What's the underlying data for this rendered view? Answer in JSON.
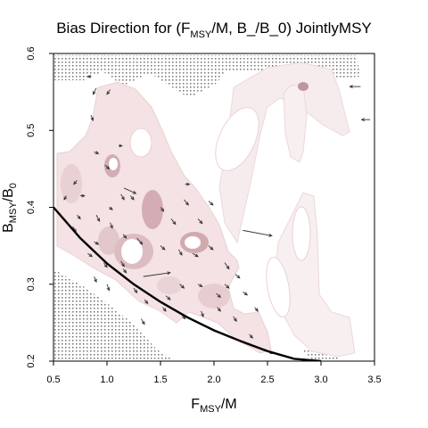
{
  "chart_data": {
    "type": "heatmap",
    "title": {
      "prefix": "Bias Direction for (F",
      "sub": "MSY",
      "suffix": "/M, B_/B_0) JointlyMSY"
    },
    "xlabel": {
      "main": "F",
      "sub": "MSY",
      "tail": "/M"
    },
    "ylabel": {
      "main": "B",
      "sub": "MSY",
      "tail": "/B",
      "sub2": "0"
    },
    "xlim": [
      0.5,
      3.5
    ],
    "ylim": [
      0.2,
      0.6
    ],
    "x_ticks": [
      "0.5",
      "1.0",
      "1.5",
      "2.0",
      "2.5",
      "3.0",
      "3.5"
    ],
    "y_ticks": [
      "0.2",
      "0.3",
      "0.4",
      "0.5",
      "0.6"
    ],
    "curve": [
      [
        0.5,
        0.4
      ],
      [
        0.75,
        0.36
      ],
      [
        1.0,
        0.327
      ],
      [
        1.25,
        0.3
      ],
      [
        1.5,
        0.277
      ],
      [
        1.75,
        0.257
      ],
      [
        2.0,
        0.24
      ],
      [
        2.25,
        0.226
      ],
      [
        2.5,
        0.213
      ],
      [
        2.75,
        0.203
      ],
      [
        3.0,
        0.2
      ]
    ],
    "arrows": [
      [
        0.85,
        0.57,
        0.82,
        0.57
      ],
      [
        0.9,
        0.555,
        0.87,
        0.547
      ],
      [
        1.03,
        0.553,
        1.0,
        0.547
      ],
      [
        0.85,
        0.52,
        0.87,
        0.513
      ],
      [
        0.88,
        0.472,
        0.92,
        0.47
      ],
      [
        0.98,
        0.455,
        1.02,
        0.45
      ],
      [
        1.11,
        0.48,
        1.14,
        0.48
      ],
      [
        1.16,
        0.425,
        1.27,
        0.418
      ],
      [
        0.72,
        0.435,
        0.69,
        0.43
      ],
      [
        0.75,
        0.415,
        0.79,
        0.415
      ],
      [
        0.9,
        0.39,
        0.93,
        0.382
      ],
      [
        1.02,
        0.4,
        1.05,
        0.397
      ],
      [
        1.13,
        0.417,
        1.16,
        0.41
      ],
      [
        1.22,
        0.415,
        1.25,
        0.41
      ],
      [
        0.62,
        0.415,
        0.6,
        0.41
      ],
      [
        0.72,
        0.39,
        0.75,
        0.385
      ],
      [
        0.88,
        0.355,
        0.92,
        0.352
      ],
      [
        1.03,
        0.38,
        1.05,
        0.373
      ],
      [
        1.15,
        0.365,
        1.18,
        0.36
      ],
      [
        1.28,
        0.36,
        1.33,
        0.352
      ],
      [
        1.5,
        0.4,
        1.53,
        0.395
      ],
      [
        1.6,
        0.385,
        1.64,
        0.378
      ],
      [
        1.72,
        0.41,
        1.76,
        0.403
      ],
      [
        1.85,
        0.385,
        1.89,
        0.379
      ],
      [
        1.95,
        0.408,
        1.99,
        0.403
      ],
      [
        1.73,
        0.43,
        1.77,
        0.43
      ],
      [
        0.68,
        0.375,
        0.71,
        0.368
      ],
      [
        0.82,
        0.34,
        0.86,
        0.336
      ],
      [
        0.97,
        0.328,
        1.0,
        0.322
      ],
      [
        1.13,
        0.33,
        1.16,
        0.323
      ],
      [
        1.34,
        0.31,
        1.59,
        0.315
      ],
      [
        1.5,
        0.35,
        1.54,
        0.345
      ],
      [
        1.67,
        0.345,
        1.7,
        0.338
      ],
      [
        1.8,
        0.34,
        1.85,
        0.336
      ],
      [
        1.95,
        0.35,
        1.99,
        0.345
      ],
      [
        2.1,
        0.328,
        2.14,
        0.32
      ],
      [
        2.27,
        0.37,
        2.54,
        0.363
      ],
      [
        2.2,
        0.313,
        2.24,
        0.308
      ],
      [
        2.1,
        0.3,
        2.14,
        0.295
      ],
      [
        2.27,
        0.29,
        2.31,
        0.286
      ],
      [
        2.02,
        0.288,
        2.06,
        0.283
      ],
      [
        1.85,
        0.3,
        1.89,
        0.297
      ],
      [
        1.68,
        0.3,
        1.72,
        0.295
      ],
      [
        1.55,
        0.285,
        1.59,
        0.28
      ],
      [
        1.35,
        0.28,
        1.38,
        0.275
      ],
      [
        1.15,
        0.32,
        1.18,
        0.315
      ],
      [
        1.0,
        0.3,
        1.02,
        0.292
      ],
      [
        0.88,
        0.31,
        0.9,
        0.303
      ],
      [
        1.25,
        0.295,
        1.28,
        0.289
      ],
      [
        1.32,
        0.255,
        1.35,
        0.248
      ],
      [
        1.52,
        0.27,
        1.55,
        0.265
      ],
      [
        1.7,
        0.26,
        1.73,
        0.255
      ],
      [
        1.88,
        0.265,
        1.9,
        0.258
      ],
      [
        2.03,
        0.27,
        2.06,
        0.265
      ],
      [
        2.18,
        0.258,
        2.21,
        0.252
      ],
      [
        2.33,
        0.235,
        2.36,
        0.23
      ],
      [
        2.5,
        0.213,
        2.55,
        0.21
      ],
      [
        2.38,
        0.27,
        2.41,
        0.265
      ],
      [
        3.37,
        0.557,
        3.27,
        0.557
      ],
      [
        3.46,
        0.514,
        3.38,
        0.514
      ]
    ]
  }
}
